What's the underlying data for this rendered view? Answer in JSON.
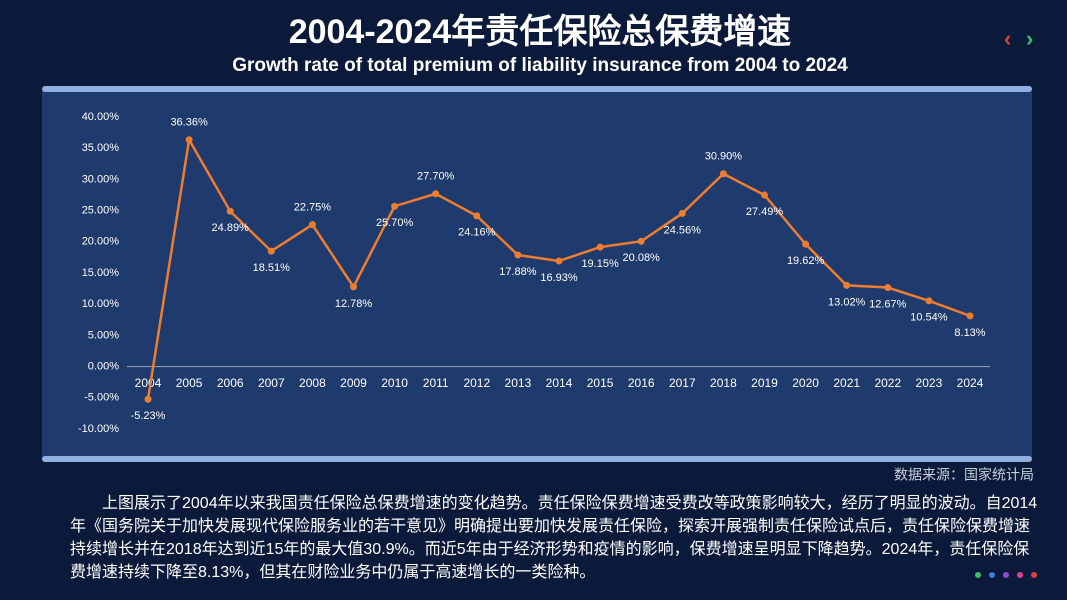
{
  "chart_data": {
    "type": "line",
    "title": "2004-2024年责任保险总保费增速",
    "subtitle": "Growth rate of  total premium of liability insurance from 2004 to 2024",
    "categories": [
      "2004",
      "2005",
      "2006",
      "2007",
      "2008",
      "2009",
      "2010",
      "2011",
      "2012",
      "2013",
      "2014",
      "2015",
      "2016",
      "2017",
      "2018",
      "2019",
      "2020",
      "2021",
      "2022",
      "2023",
      "2024"
    ],
    "values": [
      -5.23,
      36.36,
      24.89,
      18.51,
      22.75,
      12.78,
      25.7,
      27.7,
      24.16,
      17.88,
      16.93,
      19.15,
      20.08,
      24.56,
      30.9,
      27.49,
      19.62,
      13.02,
      12.67,
      10.54,
      8.13
    ],
    "value_labels": [
      "-5.23%",
      "36.36%",
      "24.89%",
      "18.51%",
      "22.75%",
      "12.78%",
      "25.70%",
      "27.70%",
      "24.16%",
      "17.88%",
      "16.93%",
      "19.15%",
      "20.08%",
      "24.56%",
      "30.90%",
      "27.49%",
      "19.62%",
      "13.02%",
      "12.67%",
      "10.54%",
      "8.13%"
    ],
    "color": "#ed7d31",
    "ylim": [
      -10,
      40
    ],
    "yticks": [
      {
        "value": -10,
        "label": "-10.00%"
      },
      {
        "value": -5,
        "label": "-5.00%"
      },
      {
        "value": 0,
        "label": "0.00%"
      },
      {
        "value": 5,
        "label": "5.00%"
      },
      {
        "value": 10,
        "label": "10.00%"
      },
      {
        "value": 15,
        "label": "15.00%"
      },
      {
        "value": 20,
        "label": "20.00%"
      },
      {
        "value": 25,
        "label": "25.00%"
      },
      {
        "value": 30,
        "label": "30.00%"
      },
      {
        "value": 35,
        "label": "35.00%"
      },
      {
        "value": 40,
        "label": "40.00%"
      }
    ],
    "grid": false,
    "source": "数据来源：国家统计局"
  },
  "description": "上图展示了2004年以来我国责任保险总保费增速的变化趋势。责任保险保费增速受费改等政策影响较大，经历了明显的波动。自2014年《国务院关于加快发展现代保险服务业的若干意见》明确提出要加快发展责任保险，探索开展强制责任保险试点后，责任保险保费增速持续增长并在2018年达到近15年的最大值30.9%。而近5年由于经济形势和疫情的影响，保费增速呈明显下降趋势。2024年，责任保险保费增速持续下降至8.13%，但其在财险业务中仍属于高速增长的一类险种。"
}
